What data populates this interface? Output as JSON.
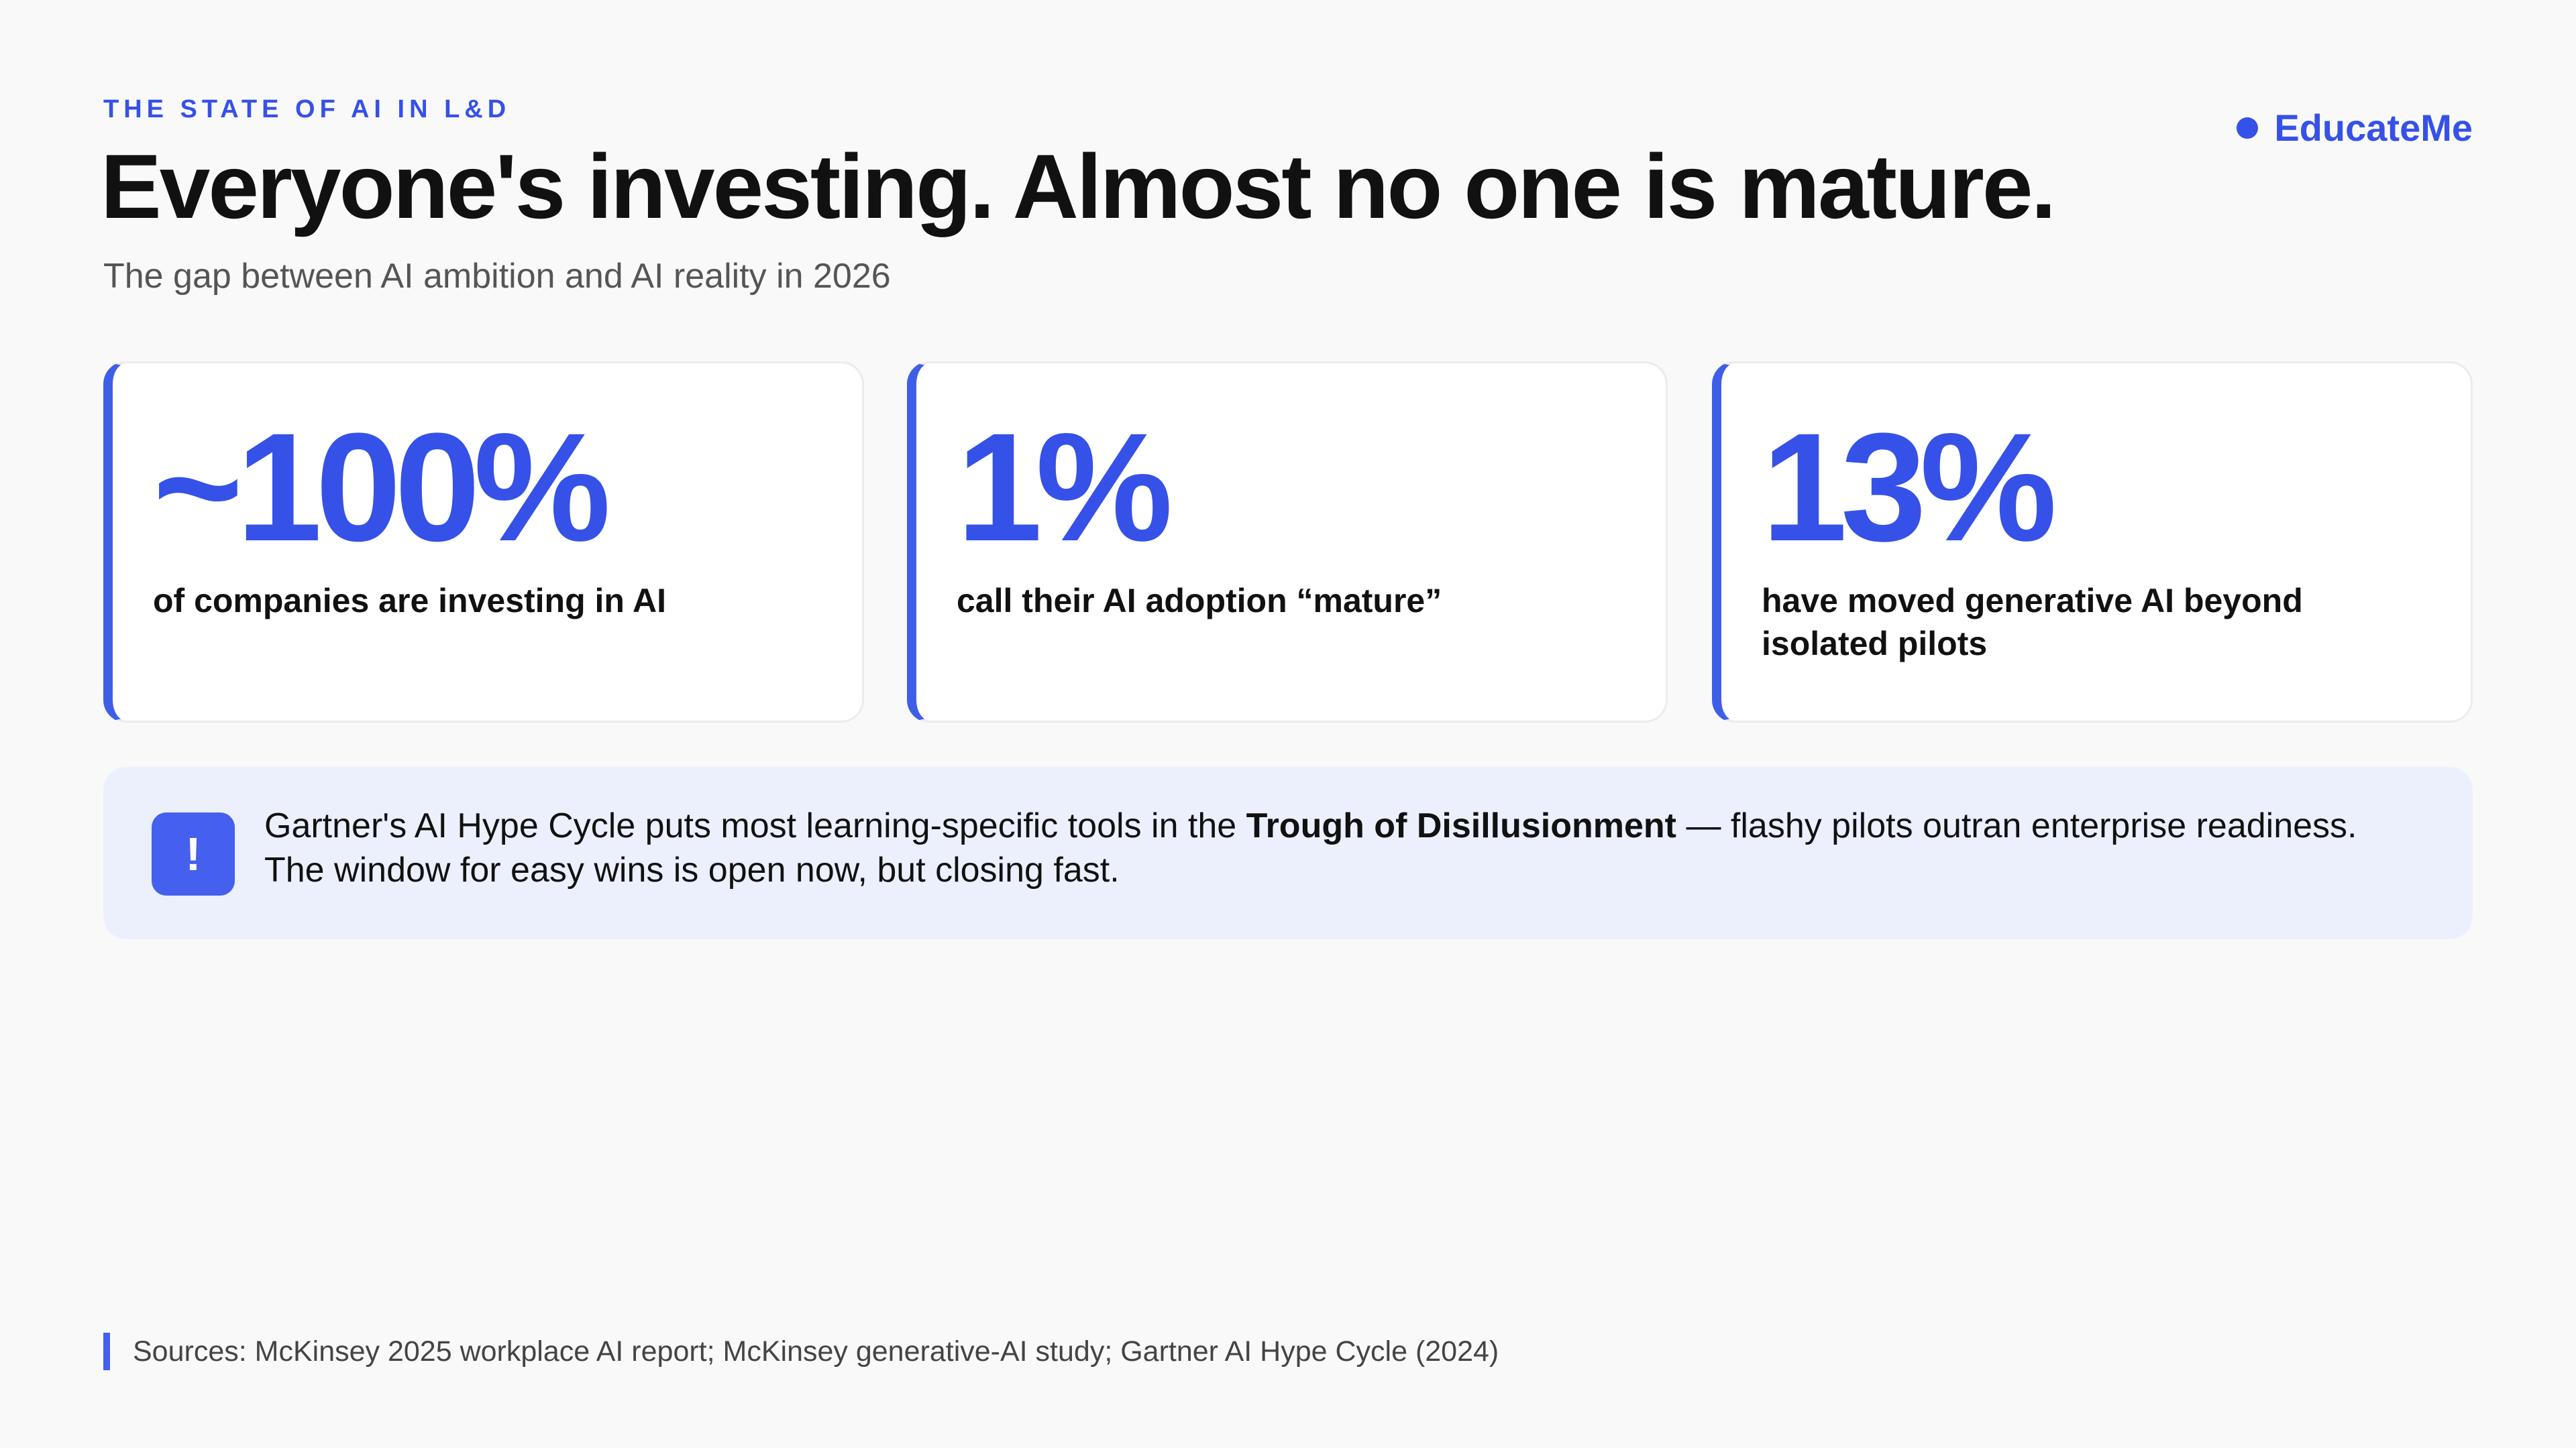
{
  "header": {
    "eyebrow": "THE STATE OF AI IN L&D",
    "title": "Everyone's investing. Almost no one is mature.",
    "subtitle": "The gap between AI ambition and AI reality in 2026"
  },
  "brand": "EducateMe",
  "stats": [
    {
      "value": "~100%",
      "label": "of companies are investing in AI"
    },
    {
      "value": "1%",
      "label": "call their AI adoption “mature”"
    },
    {
      "value": "13%",
      "label": "have moved generative AI beyond isolated pilots"
    }
  ],
  "callout": {
    "icon": "!",
    "before": "Gartner's AI Hype Cycle puts most learning-specific tools in the ",
    "bold": "Trough of Disillusionment",
    "after": " — flashy pilots outran enterprise readiness. The window for easy wins is open now, but closing fast."
  },
  "sources": "Sources: McKinsey 2025 workplace AI report; McKinsey generative-AI study; Gartner AI Hype Cycle (2024)"
}
